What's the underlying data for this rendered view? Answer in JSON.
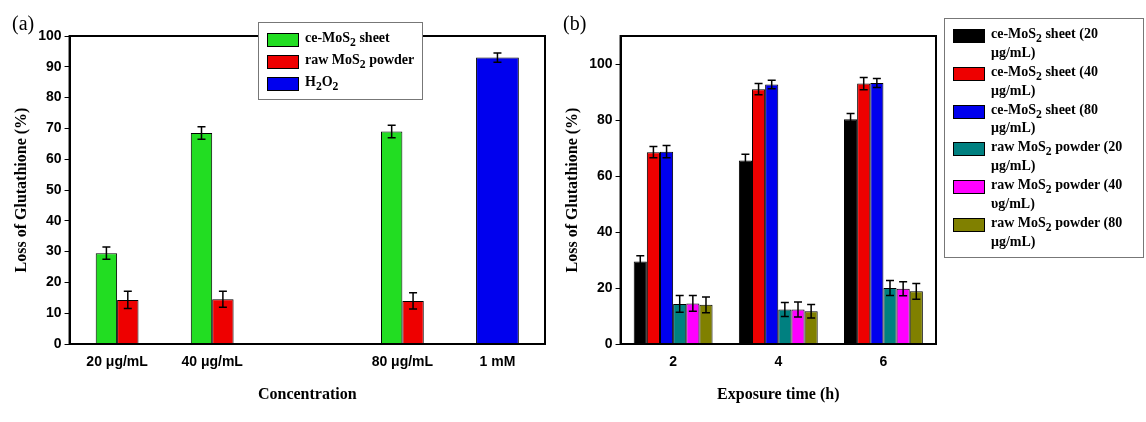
{
  "chart_data": [
    {
      "type": "bar",
      "title": "(a)",
      "xlabel": "Concentration",
      "ylabel": "Loss of Glutathione (%)",
      "categories": [
        "20 μg/mL",
        "40 μg/mL",
        null,
        "80 μg/mL",
        "1 mM"
      ],
      "ylim": [
        0,
        100
      ],
      "yticks": [
        0,
        10,
        20,
        30,
        40,
        50,
        60,
        70,
        80,
        90,
        100
      ],
      "grid": false,
      "legend": "top right",
      "series": [
        {
          "name": "ce-MoS$_{2}$ sheet",
          "color": "#22dd22",
          "values": [
            29.5,
            68.5,
            null,
            69,
            null
          ],
          "errors": [
            2,
            2,
            null,
            2,
            null
          ]
        },
        {
          "name": "raw MoS$_{2}$ powder",
          "color": "#ee0000",
          "values": [
            14.3,
            14.5,
            null,
            14,
            null
          ],
          "errors": [
            2.8,
            2.6,
            null,
            2.6,
            null
          ]
        },
        {
          "name": "H$_{2}$O$_{2}$",
          "color": "#0000ee",
          "values": [
            null,
            null,
            null,
            null,
            93
          ],
          "errors": [
            null,
            null,
            null,
            null,
            1.5
          ]
        }
      ]
    },
    {
      "type": "bar",
      "title": "(b)",
      "xlabel": "Exposure time (h)",
      "ylabel": "Loss of Glutathione (%)",
      "categories": [
        "2",
        "4",
        "6"
      ],
      "ylim": [
        0,
        110
      ],
      "yticks": [
        0,
        20,
        40,
        60,
        80,
        100
      ],
      "grid": false,
      "legend": "right",
      "series": [
        {
          "name": "ce-MoS$_{2}$ sheet (20 μg/mL)",
          "color": "#000000",
          "values": [
            29.5,
            65.5,
            80.3
          ],
          "errors": [
            2,
            2.3,
            2
          ]
        },
        {
          "name": "ce-MoS$_{2}$ sheet (40 μg/mL)",
          "color": "#ee0000",
          "values": [
            68.5,
            91,
            93
          ],
          "errors": [
            2,
            2,
            2.2
          ]
        },
        {
          "name": "ce-MoS$_{2}$ sheet (80 μg/mL)",
          "color": "#0000ee",
          "values": [
            68.7,
            92.7,
            93.2
          ],
          "errors": [
            2.2,
            1.5,
            1.6
          ]
        },
        {
          "name": "raw MoS$_{2}$ powder (20 μg/mL)",
          "color": "#008080",
          "values": [
            14.3,
            12.3,
            20
          ],
          "errors": [
            3,
            2.5,
            2.7
          ]
        },
        {
          "name": "raw MoS$_{2}$ powder (40 υg/mL)",
          "color": "#ff00ff",
          "values": [
            14.5,
            12.3,
            19.7
          ],
          "errors": [
            2.8,
            2.7,
            2.5
          ]
        },
        {
          "name": "raw MoS$_{2}$ powder (80 μg/mL)",
          "color": "#808000",
          "values": [
            14,
            11.7,
            18.8
          ],
          "errors": [
            2.8,
            2.4,
            2.8
          ]
        }
      ]
    }
  ]
}
